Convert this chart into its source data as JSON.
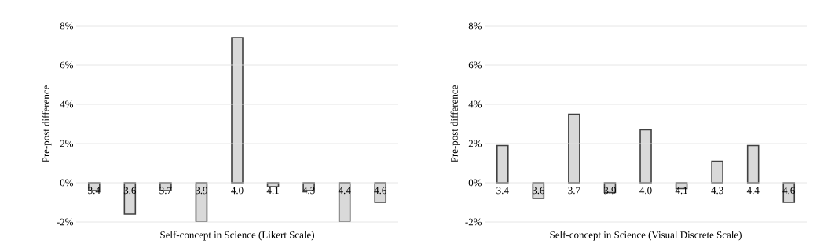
{
  "chart_data": [
    {
      "type": "bar",
      "xlabel": "Self-concept in Science (Likert Scale)",
      "ylabel": "Pre-post difference",
      "categories": [
        "3.4",
        "3.6",
        "3.7",
        "3.9",
        "4.0",
        "4.1",
        "4.3",
        "4.4",
        "4.6"
      ],
      "values": [
        -0.4,
        -1.6,
        -0.4,
        -2.0,
        7.4,
        -0.2,
        -0.4,
        -2.0,
        -1.0
      ],
      "color": "#d9d9d9",
      "ylim": [
        -2,
        8
      ],
      "yticks": [
        {
          "value": -2,
          "label": "-2%"
        },
        {
          "value": 0,
          "label": "0%"
        },
        {
          "value": 2,
          "label": "2%"
        },
        {
          "value": 4,
          "label": "4%"
        },
        {
          "value": 6,
          "label": "6%"
        },
        {
          "value": 8,
          "label": "8%"
        }
      ],
      "grid": "y"
    },
    {
      "type": "bar",
      "xlabel": "Self-concept in Science (Visual Discrete Scale)",
      "ylabel": "Pre-post difference",
      "categories": [
        "3.4",
        "3.6",
        "3.7",
        "3.9",
        "4.0",
        "4.1",
        "4.3",
        "4.4",
        "4.6"
      ],
      "values": [
        1.9,
        -0.8,
        3.5,
        -0.5,
        2.7,
        -0.3,
        1.1,
        1.9,
        -1.0
      ],
      "color": "#d9d9d9",
      "ylim": [
        -2,
        8
      ],
      "yticks": [
        {
          "value": -2,
          "label": "-2%"
        },
        {
          "value": 0,
          "label": "0%"
        },
        {
          "value": 2,
          "label": "2%"
        },
        {
          "value": 4,
          "label": "4%"
        },
        {
          "value": 6,
          "label": "6%"
        },
        {
          "value": 8,
          "label": "8%"
        }
      ],
      "grid": "y"
    }
  ]
}
